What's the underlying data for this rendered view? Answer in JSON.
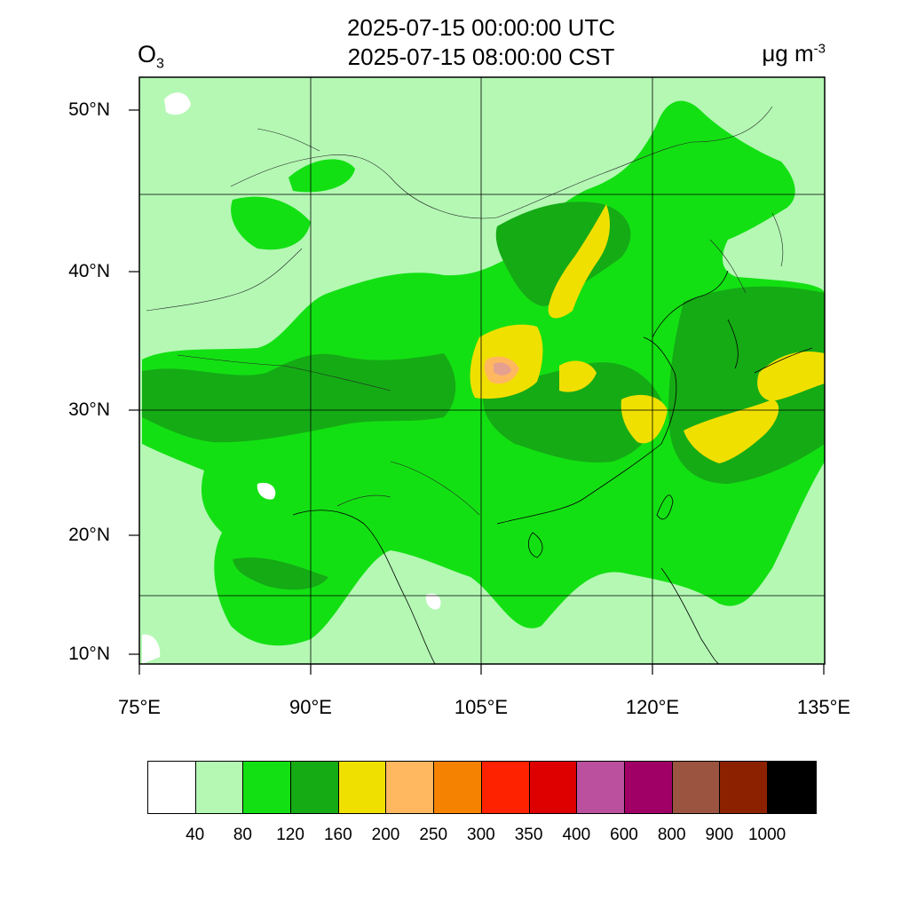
{
  "title": {
    "utc": "2025-07-15 00:00:00 UTC",
    "cst": "2025-07-15 08:00:00 CST"
  },
  "species": {
    "base": "O",
    "sub": "3"
  },
  "units": {
    "base": "μg m",
    "exp": "-3"
  },
  "axes": {
    "lat_labels": [
      "50°N",
      "40°N",
      "30°N",
      "20°N",
      "10°N"
    ],
    "lon_labels": [
      "75°E",
      "90°E",
      "105°E",
      "120°E",
      "135°E"
    ]
  },
  "colorbar": {
    "colors": [
      "#ffffff",
      "#b4f8b4",
      "#13e013",
      "#15ab15",
      "#f0e000",
      "#ffb760",
      "#f58200",
      "#ff2200",
      "#de0000",
      "#ba509e",
      "#a00066",
      "#9b5440",
      "#8c2100",
      "#000000"
    ],
    "labels": [
      "40",
      "80",
      "120",
      "160",
      "200",
      "250",
      "300",
      "350",
      "400",
      "600",
      "800",
      "900",
      "1000"
    ]
  },
  "map_colors": {
    "light_green": "#b4f8b4",
    "green": "#13e013",
    "dark_green": "#15ab15",
    "yellow": "#f0e000",
    "orange": "#ffb760",
    "pink": "#e6a090"
  }
}
